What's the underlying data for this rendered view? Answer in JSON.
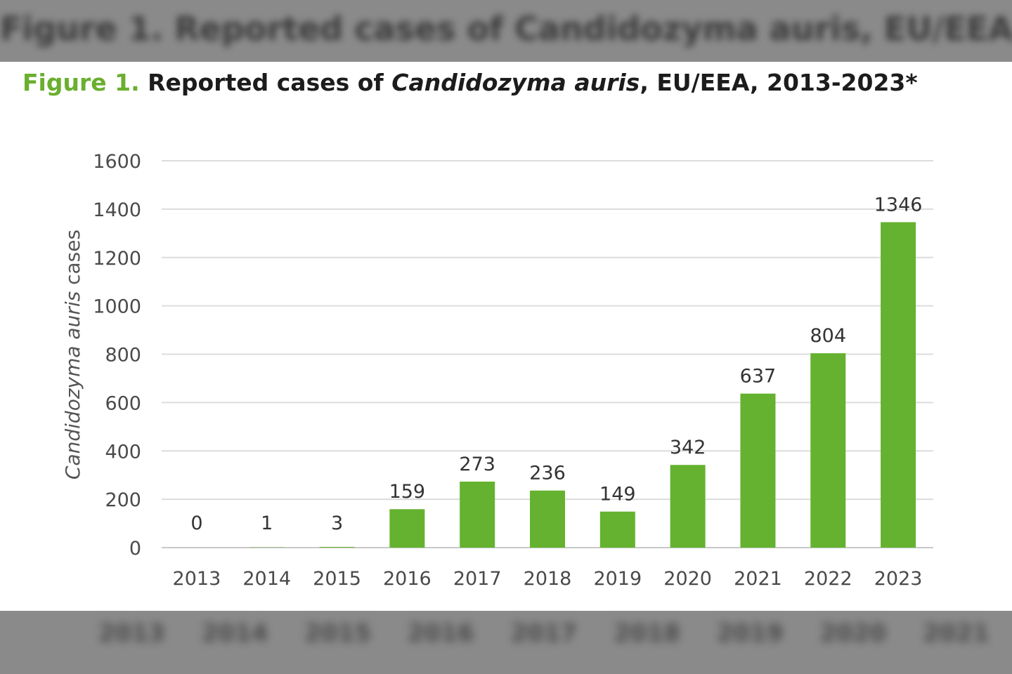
{
  "caption": {
    "label": "Figure 1.",
    "text_pre": " Reported cases of ",
    "species": "Candidozyma auris",
    "text_post": ", EU/EEA, 2013-2023*"
  },
  "chart_data": {
    "type": "bar",
    "title": "Figure 1. Reported cases of Candidozyma auris, EU/EEA, 2013-2023*",
    "xlabel": "",
    "ylabel": "Candidozyma auris cases",
    "categories": [
      "2013",
      "2014",
      "2015",
      "2016",
      "2017",
      "2018",
      "2019",
      "2020",
      "2021",
      "2022",
      "2023"
    ],
    "values": [
      0,
      1,
      3,
      159,
      273,
      236,
      149,
      342,
      637,
      804,
      1346
    ],
    "ylim": [
      0,
      1600
    ],
    "yticks": [
      0,
      200,
      400,
      600,
      800,
      1000,
      1200,
      1400,
      1600
    ],
    "grid": true,
    "legend": "none",
    "bar_color": "#64b22f",
    "data_labels": true
  }
}
